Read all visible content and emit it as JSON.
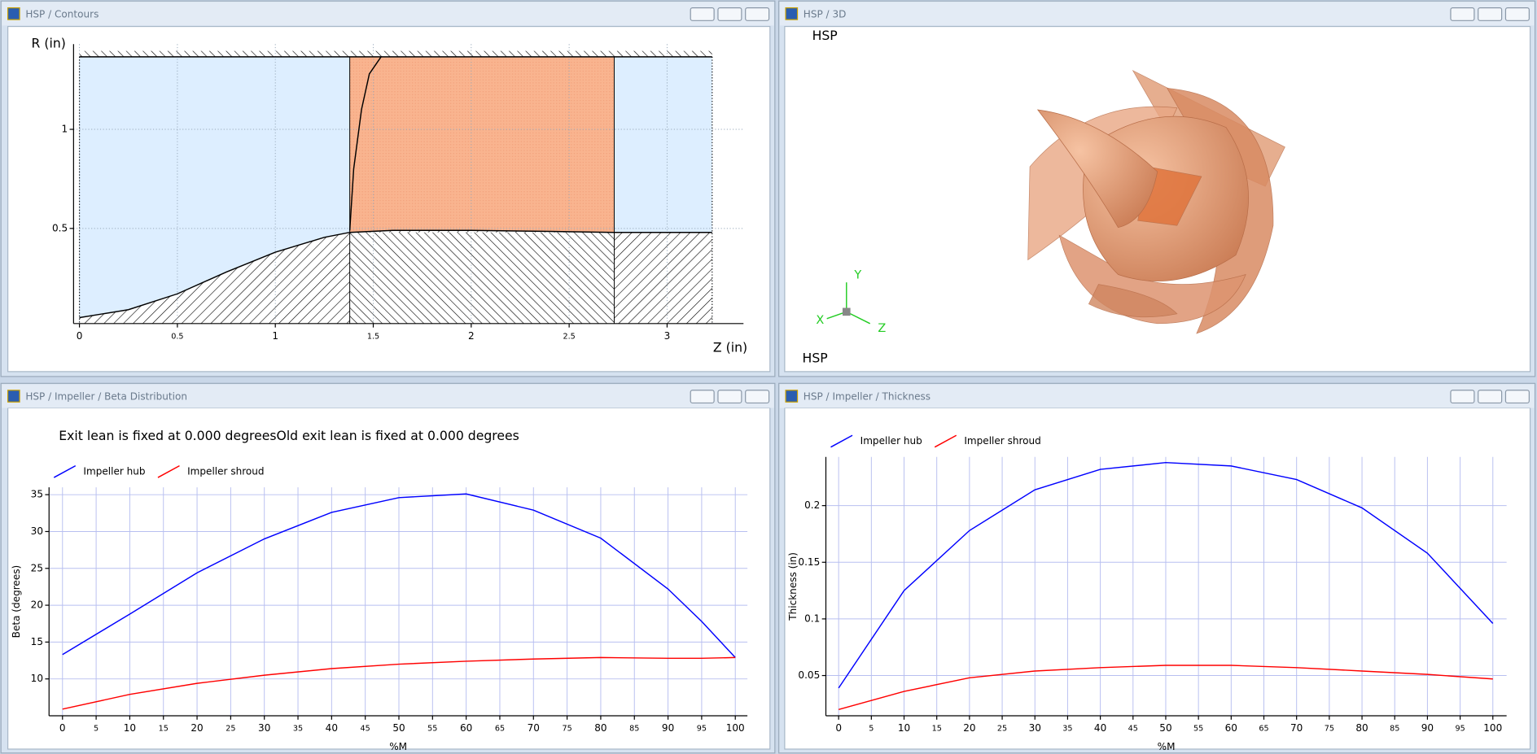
{
  "windows": [
    {
      "title": "HSP / Contours"
    },
    {
      "title": "HSP / 3D",
      "labels": [
        "HSP",
        "HSP"
      ],
      "axes": [
        "X",
        "Y",
        "Z"
      ]
    },
    {
      "title": "HSP / Impeller / Beta Distribution"
    },
    {
      "title": "HSP / Impeller / Thickness"
    }
  ],
  "chart_data": [
    {
      "type": "line",
      "xlabel": "Z (in)",
      "ylabel": "R (in)",
      "xlim": [
        -0.03,
        3.39
      ],
      "ylim": [
        0.02,
        1.43
      ],
      "xticks": [
        0,
        0.5,
        1,
        1.5,
        2,
        2.5,
        3
      ],
      "yticks": [
        0.5,
        1
      ],
      "grid": true,
      "zone_boundaries": [
        1.38,
        2.73
      ],
      "series": [
        {
          "color": "#000000",
          "x": [
            0,
            0.25,
            0.5,
            0.75,
            1,
            1.25,
            1.38,
            1.6,
            2,
            2.4,
            2.73,
            3.23
          ],
          "values": [
            0.05,
            0.09,
            0.17,
            0.28,
            0.38,
            0.455,
            0.48,
            0.49,
            0.49,
            0.485,
            0.48,
            0.48
          ]
        },
        {
          "color": "#000000",
          "x": [
            0,
            1.38,
            2.73,
            3.23
          ],
          "values": [
            1.366,
            1.366,
            1.366,
            1.366
          ]
        },
        {
          "color": "#000000",
          "x": [
            1.38,
            1.4,
            1.44,
            1.48,
            1.54
          ],
          "values": [
            0.49,
            0.8,
            1.1,
            1.28,
            1.366
          ]
        }
      ]
    },
    {
      "type": "line",
      "title": "Exit lean is fixed at 0.000 degreesOld exit lean is fixed at 0.000 degrees",
      "xlabel": "%M",
      "ylabel": "Beta (degrees)",
      "xlim": [
        -2,
        101.8
      ],
      "ylim": [
        5,
        36
      ],
      "xticks": [
        0,
        5,
        10,
        15,
        20,
        25,
        30,
        35,
        40,
        45,
        50,
        55,
        60,
        65,
        70,
        75,
        80,
        85,
        90,
        95,
        100
      ],
      "yticks": [
        10,
        15,
        20,
        25,
        30,
        35
      ],
      "grid": true,
      "legend": "top-left",
      "x": [
        0,
        10,
        20,
        30,
        40,
        50,
        60,
        70,
        80,
        90,
        95,
        100
      ],
      "series": [
        {
          "name": "Impeller hub",
          "color": "#0000ff",
          "values": [
            13.3,
            18.8,
            24.4,
            29,
            32.6,
            34.6,
            35.1,
            32.9,
            29.1,
            22.2,
            17.8,
            12.9
          ]
        },
        {
          "name": "Impeller shroud",
          "color": "#ff0000",
          "values": [
            5.9,
            7.9,
            9.4,
            10.5,
            11.4,
            12,
            12.4,
            12.7,
            12.9,
            12.8,
            12.8,
            12.9
          ]
        }
      ]
    },
    {
      "type": "line",
      "xlabel": "%M",
      "ylabel": "Thickness (in)",
      "xlim": [
        -1.95,
        102.1
      ],
      "ylim": [
        0.0145,
        0.243
      ],
      "xticks": [
        0,
        5,
        10,
        15,
        20,
        25,
        30,
        35,
        40,
        45,
        50,
        55,
        60,
        65,
        70,
        75,
        80,
        85,
        90,
        95,
        100
      ],
      "yticks": [
        0.05,
        0.1,
        0.15,
        0.2
      ],
      "grid": true,
      "legend": "top-left",
      "x": [
        0,
        10,
        20,
        30,
        40,
        50,
        60,
        70,
        80,
        90,
        100
      ],
      "series": [
        {
          "name": "Impeller hub",
          "color": "#0000ff",
          "values": [
            0.039,
            0.125,
            0.178,
            0.214,
            0.232,
            0.238,
            0.235,
            0.223,
            0.198,
            0.158,
            0.096
          ]
        },
        {
          "name": "Impeller shroud",
          "color": "#ff0000",
          "values": [
            0.02,
            0.036,
            0.048,
            0.054,
            0.057,
            0.059,
            0.059,
            0.057,
            0.054,
            0.051,
            0.047
          ]
        }
      ]
    }
  ]
}
